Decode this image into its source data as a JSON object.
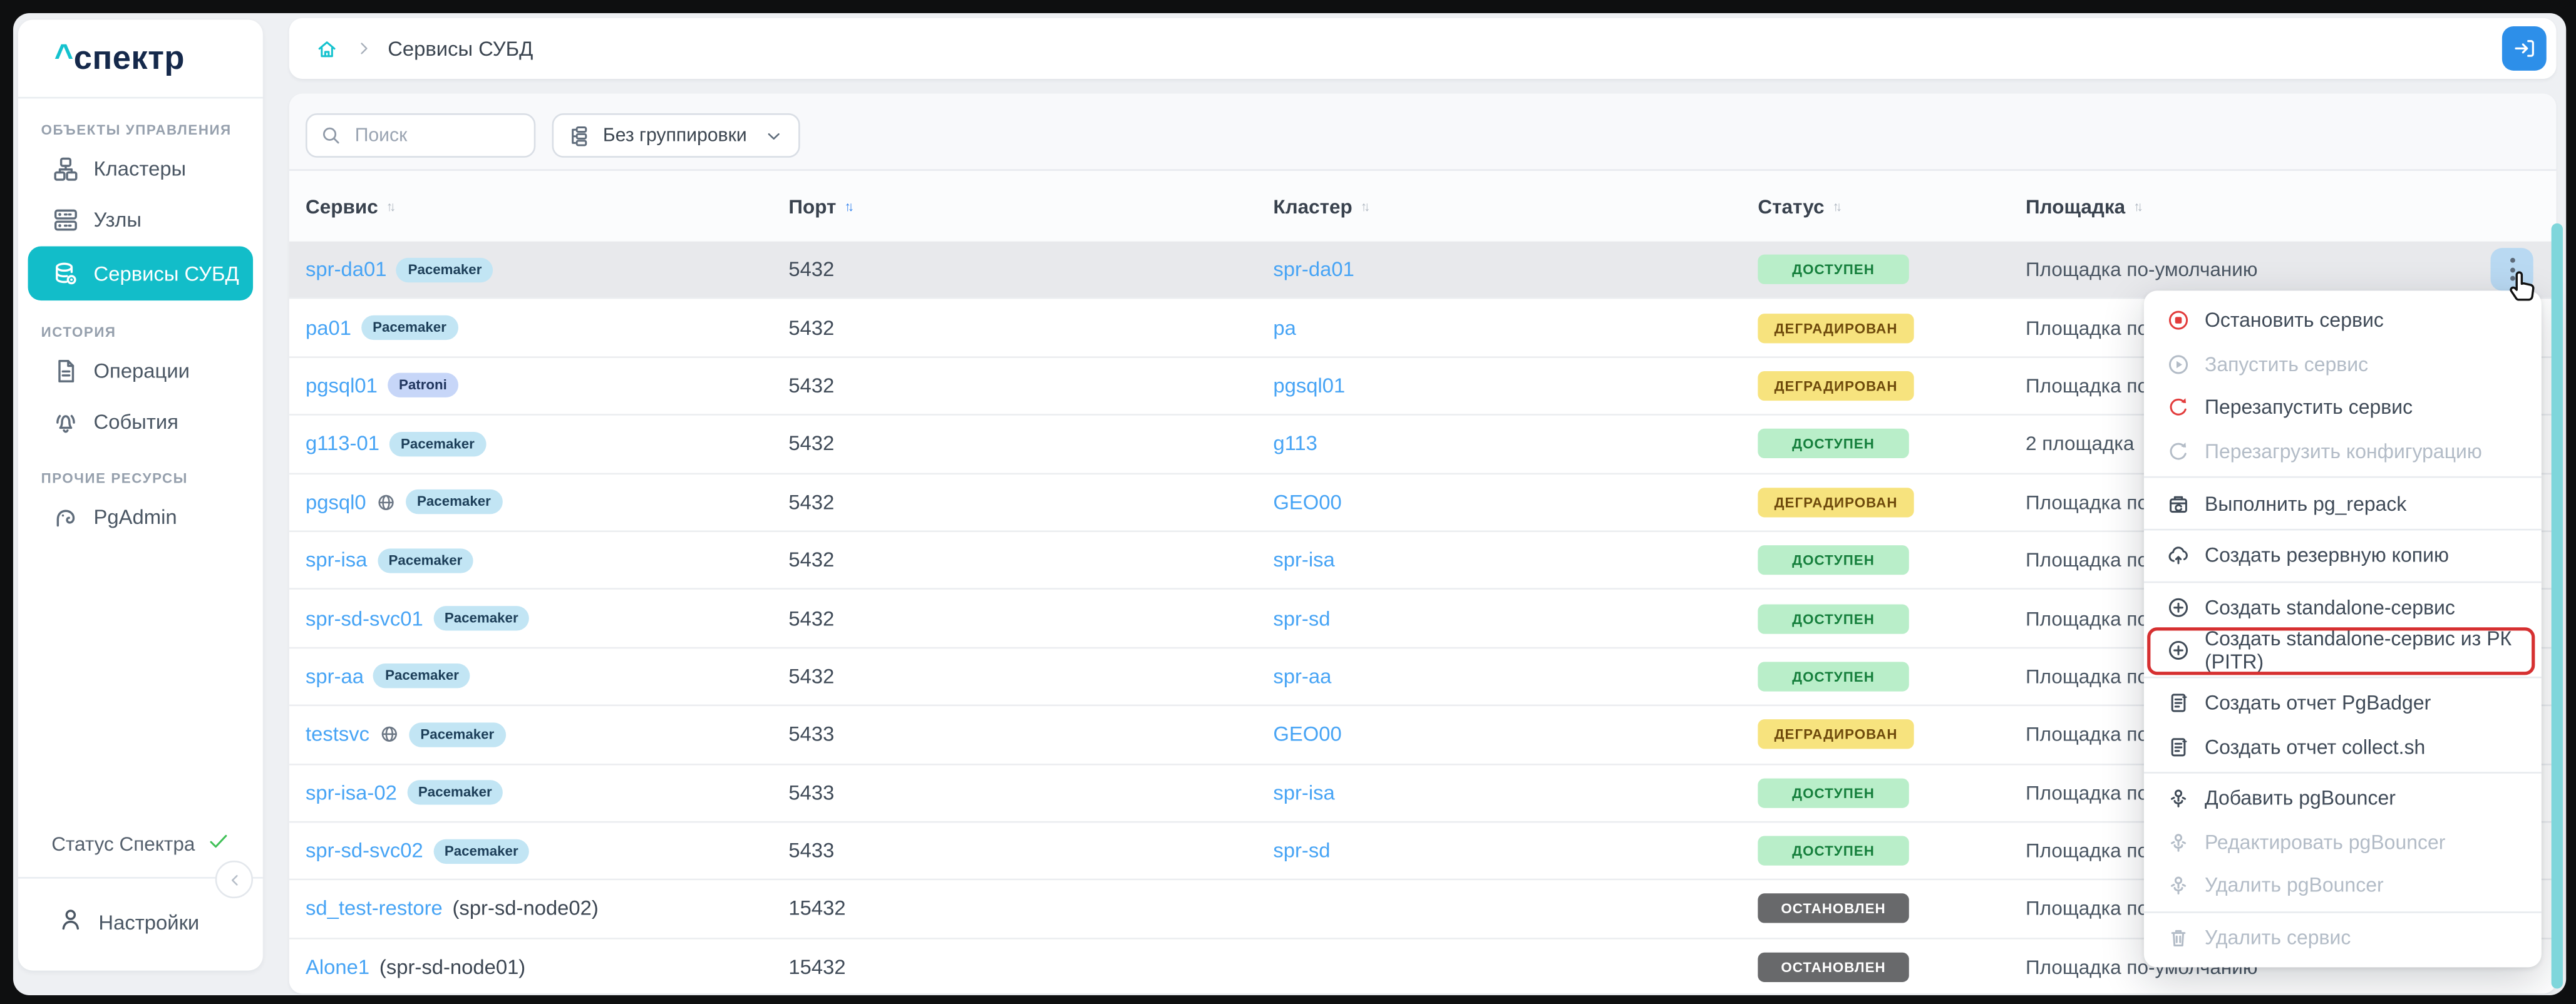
{
  "app": {
    "logo_caret": "^",
    "logo_text": "спектр"
  },
  "sidebar": {
    "sections": [
      {
        "label": "ОБЪЕКТЫ УПРАВЛЕНИЯ",
        "items": [
          {
            "label": "Кластеры",
            "icon": "clusters-icon",
            "active": false
          },
          {
            "label": "Узлы",
            "icon": "nodes-icon",
            "active": false
          },
          {
            "label": "Сервисы СУБД",
            "icon": "database-gear-icon",
            "active": true
          }
        ]
      },
      {
        "label": "ИСТОРИЯ",
        "items": [
          {
            "label": "Операции",
            "icon": "document-icon",
            "active": false
          },
          {
            "label": "События",
            "icon": "bell-icon",
            "active": false
          }
        ]
      },
      {
        "label": "ПРОЧИЕ РЕСУРСЫ",
        "items": [
          {
            "label": "PgAdmin",
            "icon": "elephant-icon",
            "active": false
          }
        ]
      }
    ],
    "status_label": "Статус Спектра",
    "settings_label": "Настройки"
  },
  "header": {
    "breadcrumb": "Сервисы СУБД"
  },
  "toolbar": {
    "search_placeholder": "Поиск",
    "grouping_value": "Без группировки"
  },
  "table": {
    "columns": [
      {
        "label": "Сервис",
        "sort": "inactive"
      },
      {
        "label": "Порт",
        "sort": "active"
      },
      {
        "label": "Кластер",
        "sort": "inactive"
      },
      {
        "label": "Статус",
        "sort": "inactive"
      },
      {
        "label": "Площадка",
        "sort": "inactive"
      }
    ],
    "rows": [
      {
        "service": "spr-da01",
        "suffix": "",
        "badge": "Pacemaker",
        "globe": false,
        "port": "5432",
        "cluster": "spr-da01",
        "status": "ДОСТУПЕН",
        "status_kind": "ok",
        "site": "Площадка по-умолчанию",
        "selected": true
      },
      {
        "service": "pa01",
        "suffix": "",
        "badge": "Pacemaker",
        "globe": false,
        "port": "5432",
        "cluster": "pa",
        "status": "ДЕГРАДИРОВАН",
        "status_kind": "warn",
        "site": "Площадка по-умолчанию",
        "selected": false
      },
      {
        "service": "pgsql01",
        "suffix": "",
        "badge": "Patroni",
        "globe": false,
        "port": "5432",
        "cluster": "pgsql01",
        "status": "ДЕГРАДИРОВАН",
        "status_kind": "warn",
        "site": "Площадка по-умолчанию",
        "selected": false
      },
      {
        "service": "g113-01",
        "suffix": "",
        "badge": "Pacemaker",
        "globe": false,
        "port": "5432",
        "cluster": "g113",
        "status": "ДОСТУПЕН",
        "status_kind": "ok",
        "site": "2 площадка",
        "selected": false
      },
      {
        "service": "pgsql0",
        "suffix": "",
        "badge": "Pacemaker",
        "globe": true,
        "port": "5432",
        "cluster": "GEO00",
        "status": "ДЕГРАДИРОВАН",
        "status_kind": "warn",
        "site": "Площадка по-умолчанию",
        "selected": false
      },
      {
        "service": "spr-isa",
        "suffix": "",
        "badge": "Pacemaker",
        "globe": false,
        "port": "5432",
        "cluster": "spr-isa",
        "status": "ДОСТУПЕН",
        "status_kind": "ok",
        "site": "Площадка по-умолчанию",
        "selected": false
      },
      {
        "service": "spr-sd-svc01",
        "suffix": "",
        "badge": "Pacemaker",
        "globe": false,
        "port": "5432",
        "cluster": "spr-sd",
        "status": "ДОСТУПЕН",
        "status_kind": "ok",
        "site": "Площадка по-умолчанию",
        "selected": false
      },
      {
        "service": "spr-aa",
        "suffix": "",
        "badge": "Pacemaker",
        "globe": false,
        "port": "5432",
        "cluster": "spr-aa",
        "status": "ДОСТУПЕН",
        "status_kind": "ok",
        "site": "Площадка по-умолчанию",
        "selected": false
      },
      {
        "service": "testsvc",
        "suffix": "",
        "badge": "Pacemaker",
        "globe": true,
        "port": "5433",
        "cluster": "GEO00",
        "status": "ДЕГРАДИРОВАН",
        "status_kind": "warn",
        "site": "Площадка по-умолчанию",
        "selected": false
      },
      {
        "service": "spr-isa-02",
        "suffix": "",
        "badge": "Pacemaker",
        "globe": false,
        "port": "5433",
        "cluster": "spr-isa",
        "status": "ДОСТУПЕН",
        "status_kind": "ok",
        "site": "Площадка по-умолчанию",
        "selected": false
      },
      {
        "service": "spr-sd-svc02",
        "suffix": "",
        "badge": "Pacemaker",
        "globe": false,
        "port": "5433",
        "cluster": "spr-sd",
        "status": "ДОСТУПЕН",
        "status_kind": "ok",
        "site": "Площадка по-умолчанию",
        "selected": false
      },
      {
        "service": "sd_test-restore",
        "suffix": " (spr-sd-node02)",
        "badge": null,
        "globe": false,
        "port": "15432",
        "cluster": "",
        "status": "ОСТАНОВЛЕН",
        "status_kind": "stop",
        "site": "Площадка по-умолчанию",
        "selected": false
      },
      {
        "service": "Alone1",
        "suffix": " (spr-sd-node01)",
        "badge": null,
        "globe": false,
        "port": "15432",
        "cluster": "",
        "status": "ОСТАНОВЛЕН",
        "status_kind": "stop",
        "site": "Площадка по-умолчанию",
        "selected": false
      }
    ]
  },
  "menu": {
    "items": [
      {
        "label": "Остановить сервис",
        "icon": "stop-icon",
        "enabled": true,
        "accent": "red",
        "highlighted": false,
        "divider_after": false
      },
      {
        "label": "Запустить сервис",
        "icon": "play-icon",
        "enabled": false,
        "accent": "",
        "highlighted": false,
        "divider_after": false
      },
      {
        "label": "Перезапустить сервис",
        "icon": "restart-icon",
        "enabled": true,
        "accent": "red",
        "highlighted": false,
        "divider_after": false
      },
      {
        "label": "Перезагрузить конфигурацию",
        "icon": "reload-icon",
        "enabled": false,
        "accent": "",
        "highlighted": false,
        "divider_after": true
      },
      {
        "label": "Выполнить pg_repack",
        "icon": "repack-icon",
        "enabled": true,
        "accent": "",
        "highlighted": false,
        "divider_after": true
      },
      {
        "label": "Создать резервную копию",
        "icon": "backup-icon",
        "enabled": true,
        "accent": "",
        "highlighted": false,
        "divider_after": true
      },
      {
        "label": "Создать standalone-сервис",
        "icon": "circle-plus-icon",
        "enabled": true,
        "accent": "",
        "highlighted": false,
        "divider_after": false
      },
      {
        "label": "Создать standalone-сервис из РК (PITR)",
        "icon": "circle-plus-icon",
        "enabled": true,
        "accent": "",
        "highlighted": true,
        "divider_after": true
      },
      {
        "label": "Создать отчет PgBadger",
        "icon": "report-icon",
        "enabled": true,
        "accent": "",
        "highlighted": false,
        "divider_after": false
      },
      {
        "label": "Создать отчет collect.sh",
        "icon": "report-icon",
        "enabled": true,
        "accent": "",
        "highlighted": false,
        "divider_after": true
      },
      {
        "label": "Добавить pgBouncer",
        "icon": "pgbouncer-icon",
        "enabled": true,
        "accent": "",
        "highlighted": false,
        "divider_after": false
      },
      {
        "label": "Редактировать pgBouncer",
        "icon": "pgbouncer-icon",
        "enabled": false,
        "accent": "",
        "highlighted": false,
        "divider_after": false
      },
      {
        "label": "Удалить pgBouncer",
        "icon": "pgbouncer-icon",
        "enabled": false,
        "accent": "",
        "highlighted": false,
        "divider_after": true
      },
      {
        "label": "Удалить сервис",
        "icon": "trash-icon",
        "enabled": false,
        "accent": "",
        "highlighted": false,
        "divider_after": false
      }
    ]
  },
  "colors": {
    "accent_teal": "#12bdc9",
    "link_blue": "#47a4f5",
    "button_blue": "#2d8fe9",
    "status_ok_bg": "#b9eec9",
    "status_ok_fg": "#157f3c",
    "status_warn_bg": "#f7e37e",
    "status_warn_fg": "#6e4a0c",
    "status_stop_bg": "#68696b",
    "status_stop_fg": "#ffffff",
    "highlight_red": "#d63031",
    "scrollbar_teal": "#7fd6db",
    "check_green": "#40c057"
  }
}
